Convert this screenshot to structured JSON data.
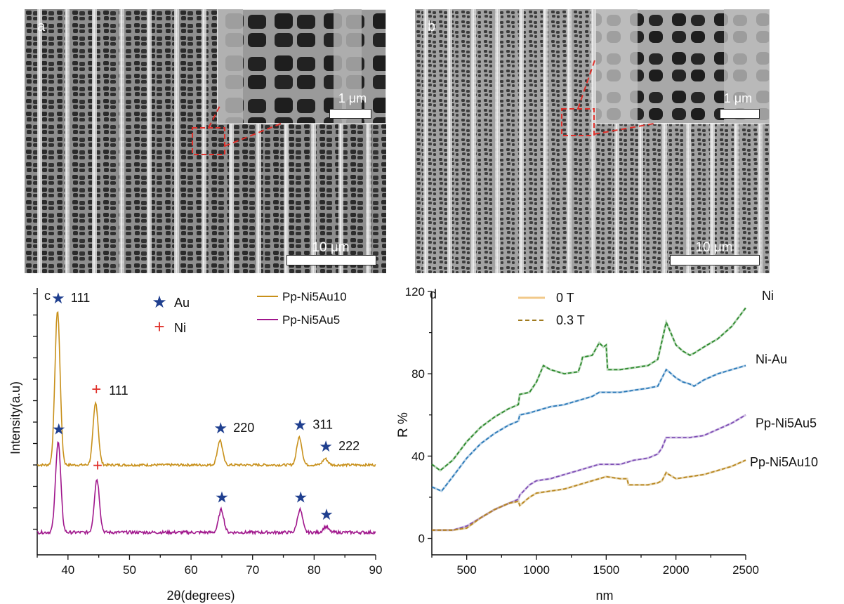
{
  "panel_a": {
    "letter": "a",
    "scale_main": "10 μm",
    "scale_inset": "1 μm"
  },
  "panel_b": {
    "letter": "b",
    "scale_main": "10 μm",
    "scale_inset": "1 μm"
  },
  "chart_data": [
    {
      "panel": "c",
      "type": "line",
      "xlabel": "2θ(degrees)",
      "ylabel": "Intensity(a.u)",
      "xlim": [
        35,
        90
      ],
      "xticks": [
        "40",
        "50",
        "60",
        "70",
        "80",
        "90"
      ],
      "legend_markers": [
        {
          "label": "Au",
          "symbol": "★",
          "color": "#1f3f8f"
        },
        {
          "label": "Ni",
          "symbol": "+",
          "color": "#e0302a"
        }
      ],
      "series": [
        {
          "name": "Pp-Ni5Au10",
          "color": "#c8901a",
          "baseline": 46.5,
          "peaks": [
            {
              "x": 38.3,
              "height": 100,
              "phase": "Au",
              "label": "111"
            },
            {
              "x": 44.5,
              "height": 40,
              "phase": "Ni",
              "label": "111"
            },
            {
              "x": 64.7,
              "height": 16,
              "phase": "Au",
              "label": "220"
            },
            {
              "x": 77.6,
              "height": 18,
              "phase": "Au",
              "label": "311"
            },
            {
              "x": 81.8,
              "height": 4,
              "phase": "Au",
              "label": "222"
            }
          ]
        },
        {
          "name": "Pp-Ni5Au5",
          "color": "#a0168c",
          "baseline": 2,
          "peaks": [
            {
              "x": 38.4,
              "height": 48,
              "phase": "Au"
            },
            {
              "x": 44.7,
              "height": 28,
              "phase": "Ni"
            },
            {
              "x": 64.9,
              "height": 12,
              "phase": "Au"
            },
            {
              "x": 77.7,
              "height": 12,
              "phase": "Au"
            },
            {
              "x": 81.9,
              "height": 3,
              "phase": "Au"
            }
          ]
        }
      ]
    },
    {
      "panel": "d",
      "type": "line",
      "xlabel": "nm",
      "ylabel": "R %",
      "xlim": [
        250,
        2500
      ],
      "ylim": [
        -8,
        120
      ],
      "xticks": [
        500,
        1000,
        1500,
        2000,
        2500
      ],
      "yticks": [
        0,
        40,
        80,
        120
      ],
      "legend": [
        {
          "label": "0 T",
          "style": "solid",
          "color": "#f2c98a"
        },
        {
          "label": "0.3 T",
          "style": "dashed",
          "color": "#a07a1e"
        }
      ],
      "series": [
        {
          "name": "Ni",
          "color": "#2e8a2e",
          "x": [
            250,
            310,
            400,
            500,
            600,
            700,
            800,
            870,
            880,
            950,
            1000,
            1050,
            1100,
            1200,
            1300,
            1320,
            1330,
            1400,
            1450,
            1480,
            1500,
            1510,
            1560,
            1600,
            1700,
            1800,
            1870,
            1900,
            1930,
            1950,
            2000,
            2050,
            2100,
            2130,
            2200,
            2300,
            2400,
            2500
          ],
          "y": [
            36,
            33,
            38,
            47,
            54,
            59,
            63,
            65,
            70,
            71,
            76,
            84,
            82,
            80,
            81,
            85,
            88,
            89,
            95,
            93,
            94,
            82,
            82,
            82,
            83,
            84,
            87,
            96,
            105,
            102,
            94,
            91,
            89,
            90,
            93,
            97,
            103,
            112
          ]
        },
        {
          "name": "Ni-Au",
          "color": "#2a79b8",
          "x": [
            250,
            320,
            400,
            500,
            600,
            700,
            800,
            870,
            880,
            950,
            1000,
            1100,
            1200,
            1300,
            1400,
            1450,
            1500,
            1600,
            1700,
            1800,
            1870,
            1900,
            1930,
            1950,
            2000,
            2050,
            2100,
            2130,
            2200,
            2300,
            2400,
            2500
          ],
          "y": [
            25,
            23,
            30,
            39,
            46,
            51,
            55,
            57,
            60,
            61,
            62,
            64,
            65,
            67,
            69,
            71,
            71,
            71,
            72,
            73,
            74,
            78,
            82,
            81,
            78,
            76,
            75,
            74,
            77,
            80,
            82,
            84
          ]
        },
        {
          "name": "Pp-Ni5Au5",
          "color": "#7f4fb5",
          "x": [
            250,
            400,
            500,
            600,
            700,
            800,
            870,
            880,
            950,
            1000,
            1100,
            1200,
            1300,
            1400,
            1450,
            1500,
            1600,
            1650,
            1700,
            1800,
            1870,
            1900,
            1930,
            1950,
            2000,
            2100,
            2200,
            2300,
            2400,
            2500
          ],
          "y": [
            4,
            4,
            6,
            10,
            14,
            17,
            19,
            21,
            26,
            28,
            29,
            31,
            33,
            35,
            36,
            36,
            36,
            37,
            38,
            39,
            41,
            44,
            49,
            49,
            49,
            49,
            50,
            53,
            56,
            60
          ]
        },
        {
          "name": "Pp-Ni5Au10",
          "color": "#b8861e",
          "x": [
            250,
            400,
            500,
            600,
            700,
            800,
            870,
            880,
            950,
            1000,
            1100,
            1200,
            1300,
            1400,
            1450,
            1500,
            1600,
            1650,
            1660,
            1700,
            1800,
            1870,
            1900,
            1930,
            1950,
            2000,
            2100,
            2200,
            2300,
            2400,
            2500
          ],
          "y": [
            4,
            4,
            5,
            10,
            14,
            17,
            18,
            16,
            20,
            22,
            23,
            24,
            26,
            28,
            29,
            30,
            29,
            29,
            26,
            26,
            26,
            27,
            28,
            32,
            31,
            29,
            30,
            31,
            33,
            35,
            38
          ]
        }
      ]
    }
  ]
}
